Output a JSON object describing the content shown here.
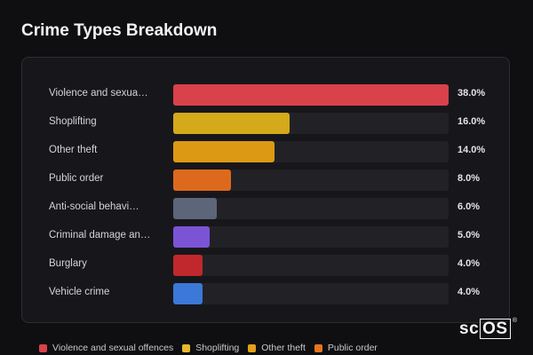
{
  "chart_data": {
    "type": "bar",
    "orientation": "horizontal",
    "title": "Crime Types Breakdown",
    "categories": [
      "Violence and sexual offences",
      "Shoplifting",
      "Other theft",
      "Public order",
      "Anti-social behaviour",
      "Criminal damage and arson",
      "Burglary",
      "Vehicle crime"
    ],
    "category_labels": [
      "Violence and sexua…",
      "Shoplifting",
      "Other theft",
      "Public order",
      "Anti-social behavi…",
      "Criminal damage an…",
      "Burglary",
      "Vehicle crime"
    ],
    "values": [
      38.0,
      16.0,
      14.0,
      8.0,
      6.0,
      5.0,
      4.0,
      4.0
    ],
    "value_labels": [
      "38.0%",
      "16.0%",
      "14.0%",
      "8.0%",
      "6.0%",
      "5.0%",
      "4.0%",
      "4.0%"
    ],
    "colors": [
      "#d9414b",
      "#d4a91a",
      "#dc9a14",
      "#dd6a1c",
      "#5d6679",
      "#7b54d6",
      "#c0282d",
      "#3b78d8"
    ],
    "xlim": [
      0,
      38
    ],
    "grid": false,
    "legend": {
      "placement": "bottom",
      "entries": [
        {
          "label": "Violence and sexual offences",
          "color": "#d9414b"
        },
        {
          "label": "Shoplifting",
          "color": "#e8b92a"
        },
        {
          "label": "Other theft",
          "color": "#e5a018"
        },
        {
          "label": "Public order",
          "color": "#e8731e"
        }
      ]
    }
  },
  "watermark": "scOS"
}
